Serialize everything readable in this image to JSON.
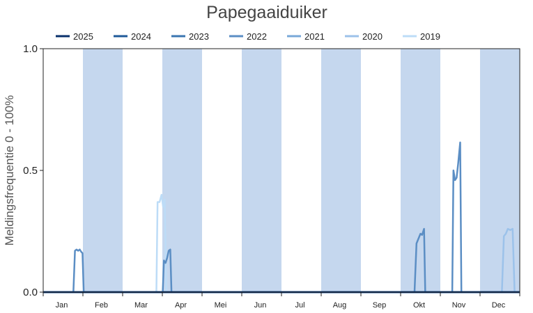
{
  "chart_data": {
    "type": "line",
    "title": "Papegaaiduiker",
    "ylabel": "Meldingsfrequentie 0 - 100%",
    "xlabel": "",
    "ylim": [
      0,
      1.0
    ],
    "xlim": [
      0,
      12
    ],
    "y_ticks": [
      {
        "value": 0.0,
        "label": "0.0"
      },
      {
        "value": 0.5,
        "label": "0.5"
      },
      {
        "value": 1.0,
        "label": "1.0"
      }
    ],
    "months": [
      "Jan",
      "Feb",
      "Mar",
      "Apr",
      "Mei",
      "Jun",
      "Jul",
      "Aug",
      "Sep",
      "Okt",
      "Nov",
      "Dec"
    ],
    "shaded_months": [
      1,
      3,
      5,
      7,
      9,
      11
    ],
    "shade_color": "#c5d7ee",
    "legend_position": "top",
    "grid": false,
    "series": [
      {
        "name": "2025",
        "color": "#08306b",
        "points": [
          [
            0,
            0
          ],
          [
            12,
            0
          ]
        ]
      },
      {
        "name": "2024",
        "color": "#1f5a99",
        "points": [
          [
            0,
            0
          ],
          [
            12,
            0
          ]
        ]
      },
      {
        "name": "2023",
        "color": "#3a75b0",
        "points": [
          [
            0,
            0
          ],
          [
            12,
            0
          ]
        ]
      },
      {
        "name": "2022",
        "color": "#5b8ec4",
        "points": [
          [
            0,
            0
          ],
          [
            0.76,
            0
          ],
          [
            0.8,
            0.17
          ],
          [
            0.84,
            0.175
          ],
          [
            0.88,
            0.17
          ],
          [
            0.92,
            0.175
          ],
          [
            0.96,
            0.165
          ],
          [
            0.99,
            0.16
          ],
          [
            1.02,
            0
          ],
          [
            3.01,
            0
          ],
          [
            3.04,
            0.13
          ],
          [
            3.08,
            0.12
          ],
          [
            3.12,
            0.14
          ],
          [
            3.16,
            0.17
          ],
          [
            3.2,
            0.175
          ],
          [
            3.23,
            0
          ],
          [
            9.35,
            0
          ],
          [
            9.4,
            0.2
          ],
          [
            9.45,
            0.22
          ],
          [
            9.5,
            0.24
          ],
          [
            9.54,
            0.235
          ],
          [
            9.59,
            0.26
          ],
          [
            9.62,
            0
          ],
          [
            10.3,
            0
          ],
          [
            10.33,
            0.5
          ],
          [
            10.37,
            0.46
          ],
          [
            10.41,
            0.47
          ],
          [
            10.45,
            0.53
          ],
          [
            10.5,
            0.615
          ],
          [
            10.53,
            0
          ],
          [
            12,
            0
          ]
        ]
      },
      {
        "name": "2021",
        "color": "#78a8d8",
        "points": [
          [
            0,
            0
          ],
          [
            12,
            0
          ]
        ]
      },
      {
        "name": "2020",
        "color": "#9cc2ea",
        "points": [
          [
            0,
            0
          ],
          [
            11.55,
            0
          ],
          [
            11.6,
            0.23
          ],
          [
            11.65,
            0.24
          ],
          [
            11.7,
            0.26
          ],
          [
            11.76,
            0.255
          ],
          [
            11.82,
            0.26
          ],
          [
            11.87,
            0
          ],
          [
            12,
            0
          ]
        ]
      },
      {
        "name": "2019",
        "color": "#bddcf7",
        "points": [
          [
            0,
            0
          ],
          [
            2.85,
            0
          ],
          [
            2.88,
            0.37
          ],
          [
            2.93,
            0.37
          ],
          [
            2.98,
            0.4
          ],
          [
            3.02,
            0.35
          ],
          [
            3.06,
            0.38
          ],
          [
            3.1,
            0
          ],
          [
            12,
            0
          ]
        ]
      }
    ]
  }
}
